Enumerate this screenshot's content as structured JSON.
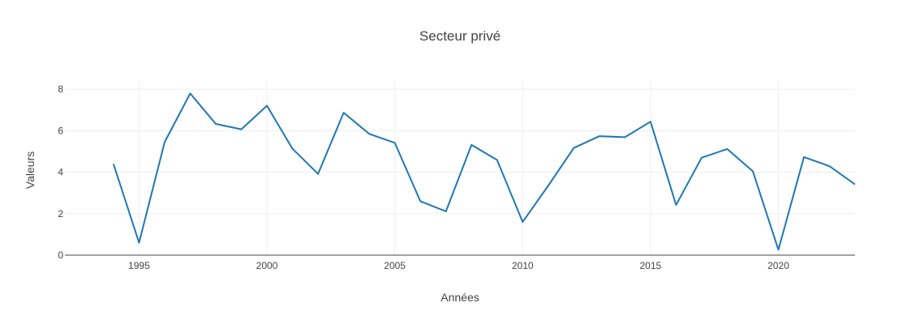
{
  "chart_data": {
    "type": "line",
    "title": "Secteur privé",
    "xlabel": "Années",
    "ylabel": "Valeurs",
    "xlim": [
      1992.1,
      2023
    ],
    "ylim": [
      0,
      8.4
    ],
    "x_ticks": [
      1995,
      2000,
      2005,
      2010,
      2015,
      2020
    ],
    "y_ticks": [
      0,
      2,
      4,
      6,
      8
    ],
    "grid": true,
    "series": [
      {
        "color": "#1f77b4",
        "x": [
          1994,
          1995,
          1996,
          1997,
          1998,
          1999,
          2000,
          2001,
          2002,
          2003,
          2004,
          2005,
          2006,
          2007,
          2008,
          2009,
          2010,
          2011,
          2012,
          2013,
          2014,
          2015,
          2016,
          2017,
          2018,
          2019,
          2020,
          2021,
          2022,
          2023
        ],
        "y": [
          4.4,
          0.6,
          5.45,
          7.8,
          6.33,
          6.07,
          7.21,
          5.13,
          3.92,
          6.87,
          5.85,
          5.42,
          2.6,
          2.11,
          5.32,
          4.59,
          1.6,
          3.35,
          5.17,
          5.74,
          5.69,
          6.44,
          2.42,
          4.7,
          5.12,
          4.05,
          0.26,
          4.73,
          4.29,
          3.41
        ]
      }
    ]
  }
}
